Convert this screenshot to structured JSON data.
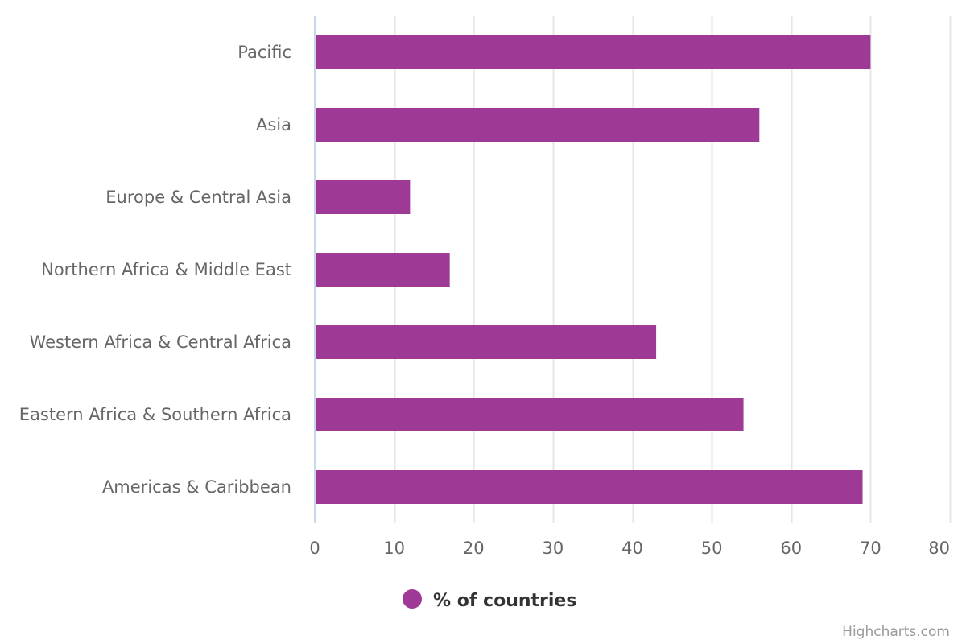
{
  "chart_data": {
    "type": "bar",
    "orientation": "horizontal",
    "categories": [
      "Pacific",
      "Asia",
      "Europe & Central Asia",
      "Northern Africa & Middle East",
      "Western Africa & Central Africa",
      "Eastern Africa & Southern Africa",
      "Americas & Caribbean"
    ],
    "series": [
      {
        "name": "% of countries",
        "color": "#9e3a96",
        "values": [
          70,
          56,
          12,
          17,
          43,
          54,
          69
        ]
      }
    ],
    "xlim": [
      0,
      80
    ],
    "ticks": [
      0,
      10,
      20,
      30,
      40,
      50,
      60,
      70,
      80
    ],
    "grid": true,
    "legend_position": "bottom-center"
  },
  "colors": {
    "bar": "#9e3a96",
    "grid": "#e6e6e6",
    "axis_line": "#ccd6eb",
    "label": "#666666",
    "legend_text": "#333333",
    "credits": "#999999"
  },
  "credits": "Highcharts.com"
}
